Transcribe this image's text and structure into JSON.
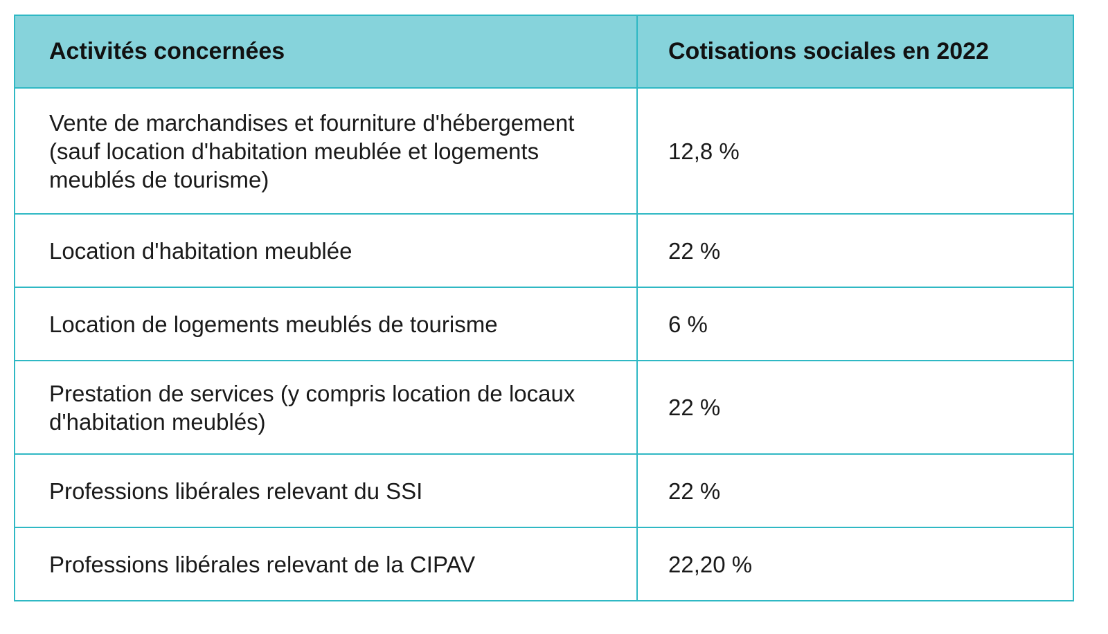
{
  "table": {
    "headers": [
      "Activités concernées",
      "Cotisations sociales en 2022"
    ],
    "rows": [
      {
        "activity": "Vente de marchandises et fourniture d'hébergement (sauf location d'habitation meublée et logements meublés de tourisme)",
        "rate": "12,8 %"
      },
      {
        "activity": "Location d'habitation meublée",
        "rate": "22 %"
      },
      {
        "activity": "Location de logements meublés de tourisme",
        "rate": "6 %"
      },
      {
        "activity": "Prestation de services (y compris location de locaux d'habitation meublés)",
        "rate": "22 %"
      },
      {
        "activity": "Professions libérales relevant du SSI",
        "rate": "22 %"
      },
      {
        "activity": "Professions libérales relevant de la CIPAV",
        "rate": "22,20 %"
      }
    ]
  },
  "colors": {
    "header_background": "#86d3db",
    "border": "#2fb8c4",
    "text": "#1a1a1a"
  }
}
